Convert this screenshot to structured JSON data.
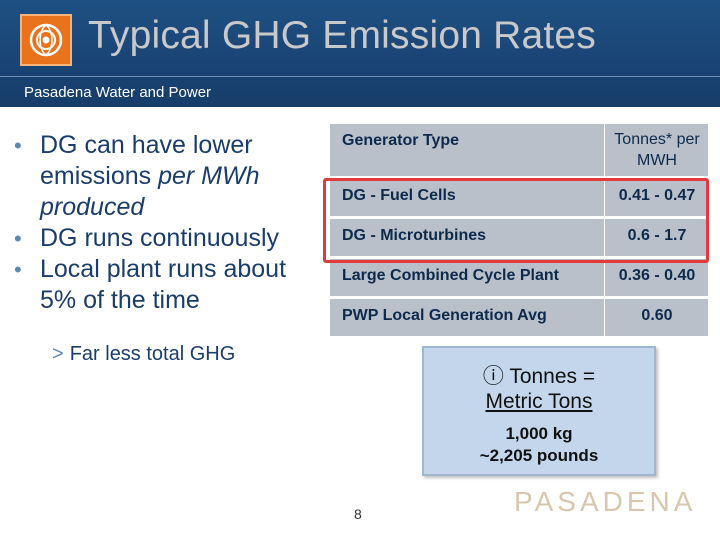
{
  "header": {
    "title": "Typical GHG Emission Rates",
    "subtitle": "Pasadena Water and Power"
  },
  "bullets": [
    {
      "text_parts": [
        "DG can have lower emissions ",
        "per MWh produced"
      ]
    },
    {
      "text": "DG runs continuously"
    },
    {
      "text": "Local plant runs about 5% of the time"
    }
  ],
  "sub_bullet": "Far less total GHG",
  "table": {
    "headers": [
      "Generator Type",
      "Tonnes* per MWH"
    ],
    "rows": [
      {
        "type": "DG - Fuel Cells",
        "value": "0.41 - 0.47"
      },
      {
        "type": "DG - Microturbines",
        "value": "0.6 - 1.7"
      },
      {
        "type": "Large Combined Cycle Plant",
        "value": "0.36 - 0.40"
      },
      {
        "type": "PWP Local Generation Avg",
        "value": "0.60"
      }
    ]
  },
  "note": {
    "line1": "Tonnes =",
    "line2": "Metric Tons",
    "line3": "1,000 kg",
    "line4": "~2,205 pounds"
  },
  "page_number": "8",
  "brand": "PASADENA",
  "colors": {
    "header_bg": "#1a4576",
    "highlight": "#e03a3a",
    "note_bg": "#c4d6ec"
  }
}
